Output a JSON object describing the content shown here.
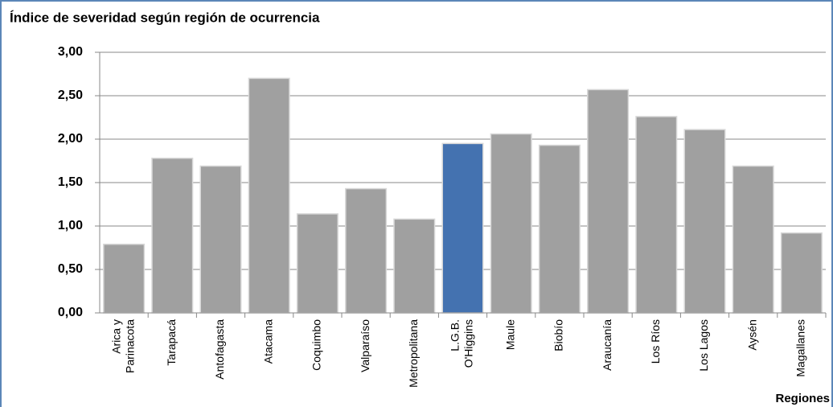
{
  "chart_data": {
    "type": "bar",
    "title": "Índice de severidad según región de ocurrencia",
    "x_label": "Regiones",
    "categories": [
      [
        "Arica y",
        "Parinacota"
      ],
      [
        "Tarapacá"
      ],
      [
        "Antofagasta"
      ],
      [
        "Atacama"
      ],
      [
        "Coquimbo"
      ],
      [
        "Valparaíso"
      ],
      [
        "Metropolitana"
      ],
      [
        "L.G.B.",
        "O'Higgins"
      ],
      [
        "Maule"
      ],
      [
        "Biobío"
      ],
      [
        "Araucanía"
      ],
      [
        "Los Ríos"
      ],
      [
        "Los Lagos"
      ],
      [
        "Aysén"
      ],
      [
        "Magallanes"
      ]
    ],
    "values": [
      0.79,
      1.78,
      1.69,
      2.7,
      1.14,
      1.43,
      1.08,
      1.95,
      2.06,
      1.93,
      2.57,
      2.26,
      2.11,
      1.69,
      0.92
    ],
    "colors": [
      "#a0a0a0",
      "#a0a0a0",
      "#a0a0a0",
      "#a0a0a0",
      "#a0a0a0",
      "#a0a0a0",
      "#a0a0a0",
      "#4472b0",
      "#a0a0a0",
      "#a0a0a0",
      "#a0a0a0",
      "#a0a0a0",
      "#a0a0a0",
      "#a0a0a0",
      "#a0a0a0"
    ],
    "ylim": [
      0,
      3
    ],
    "yticks": [
      {
        "value": 0,
        "label": "0,00"
      },
      {
        "value": 0.5,
        "label": "0,50"
      },
      {
        "value": 1,
        "label": "1,00"
      },
      {
        "value": 1.5,
        "label": "1,50"
      },
      {
        "value": 2,
        "label": "2,00"
      },
      {
        "value": 2.5,
        "label": "2,50"
      },
      {
        "value": 3,
        "label": "3,00"
      }
    ],
    "grid": true
  }
}
